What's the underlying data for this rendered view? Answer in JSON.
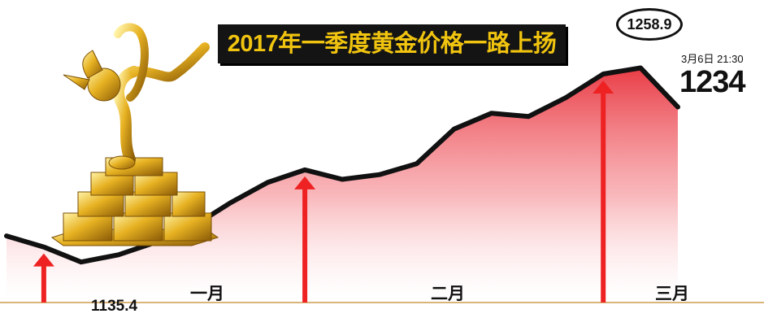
{
  "chart_data": {
    "type": "area",
    "title": "2017年一季度黄金价格一路上扬",
    "ylim": [
      1120,
      1270
    ],
    "x": [
      0,
      1,
      2,
      3,
      4,
      5,
      6,
      7,
      8,
      9,
      10,
      11,
      12,
      13,
      14,
      15,
      16,
      17,
      18
    ],
    "values": [
      1152,
      1145,
      1135.4,
      1140,
      1148,
      1158,
      1173,
      1186,
      1194,
      1188,
      1191,
      1198,
      1220,
      1230,
      1228,
      1240,
      1255,
      1258.9,
      1234
    ],
    "colors": {
      "line": "#111111",
      "fill_top": "#e8323c",
      "fill_bottom": "#ffffff",
      "arrow": "#ee2222",
      "baseline": "#d9b57a"
    },
    "annotations": {
      "min": {
        "text": "1135.4"
      },
      "peak": {
        "text": "1258.9"
      },
      "current": {
        "time": "3月6日 21:30",
        "value": "1234"
      },
      "months": [
        {
          "label": "一月",
          "value": 1145
        },
        {
          "label": "二月",
          "value": 1194
        },
        {
          "label": "三月",
          "value": 1255
        }
      ]
    },
    "decoration": {
      "icon": "gold-trophy-icon"
    }
  }
}
